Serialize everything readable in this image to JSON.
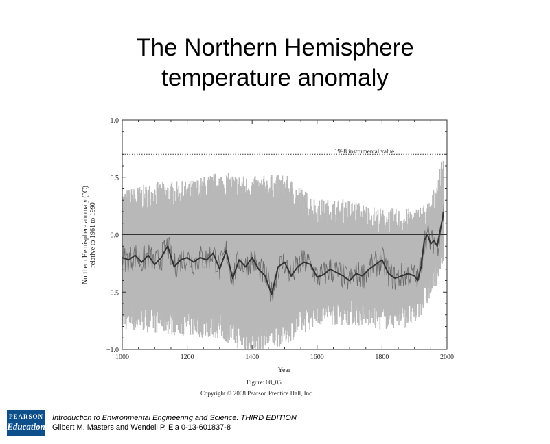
{
  "slide": {
    "title_line1": "The Northern Hemisphere",
    "title_line2": "temperature anomaly"
  },
  "footer": {
    "logo_top": "PEARSON",
    "logo_bottom": "Education",
    "line1": "Introduction to Environmental Engineering and Science: THIRD EDITION",
    "line2": "Gilbert M. Masters and Wendell P. Ela  0-13-601837-8"
  },
  "chart_data": {
    "type": "line",
    "title": "",
    "xlabel": "Year",
    "ylabel_line1": "Northern Hemisphere anomaly (°C)",
    "ylabel_line2": "relative to 1961 to 1990",
    "xlim": [
      1000,
      2000
    ],
    "ylim": [
      -1.0,
      1.0
    ],
    "x_ticks": [
      "1000",
      "1200",
      "1400",
      "1600",
      "1800",
      "2000"
    ],
    "y_ticks": [
      "1.0",
      "0.5",
      "0.0",
      "−0.5",
      "−1.0"
    ],
    "reference_lines": [
      {
        "label": "1998 instrumental value",
        "y": 0.7,
        "style": "dotted"
      },
      {
        "label": "",
        "y": 0.0,
        "style": "solid"
      }
    ],
    "caption_line1": "Figure: 08_05",
    "caption_line2": "Copyright © 2008 Pearson Prentice Hall, Inc.",
    "colors": {
      "uncertainty": "#b8b8b8",
      "annual": "#6a6a6a",
      "smoothed": "#333333"
    },
    "series": [
      {
        "name": "",
        "x": [
          1000,
          1020,
          1040,
          1060,
          1080,
          1100,
          1120,
          1140,
          1160,
          1180,
          1200,
          1220,
          1240,
          1260,
          1280,
          1300,
          1320,
          1340,
          1360,
          1380,
          1400,
          1420,
          1440,
          1460,
          1480,
          1500,
          1520,
          1540,
          1560,
          1580,
          1600,
          1620,
          1640,
          1660,
          1680,
          1700,
          1720,
          1740,
          1760,
          1780,
          1800,
          1820,
          1840,
          1860,
          1880,
          1900,
          1910,
          1920,
          1930,
          1940,
          1950,
          1960,
          1970,
          1980,
          1990
        ],
        "y": [
          -0.2,
          -0.22,
          -0.18,
          -0.24,
          -0.18,
          -0.26,
          -0.2,
          -0.1,
          -0.28,
          -0.22,
          -0.2,
          -0.24,
          -0.2,
          -0.22,
          -0.16,
          -0.3,
          -0.14,
          -0.38,
          -0.22,
          -0.28,
          -0.2,
          -0.3,
          -0.36,
          -0.52,
          -0.28,
          -0.24,
          -0.36,
          -0.28,
          -0.24,
          -0.26,
          -0.37,
          -0.35,
          -0.3,
          -0.33,
          -0.36,
          -0.4,
          -0.34,
          -0.36,
          -0.3,
          -0.26,
          -0.22,
          -0.34,
          -0.38,
          -0.36,
          -0.34,
          -0.36,
          -0.4,
          -0.28,
          -0.05,
          0.0,
          -0.08,
          -0.05,
          -0.1,
          0.05,
          0.2
        ]
      }
    ],
    "uncertainty_band": {
      "x": [
        1000,
        1100,
        1200,
        1300,
        1400,
        1500,
        1600,
        1700,
        1800,
        1900,
        1950,
        1990
      ],
      "upper": [
        0.28,
        0.35,
        0.36,
        0.44,
        0.4,
        0.42,
        0.2,
        0.2,
        0.12,
        0.12,
        0.2,
        0.6
      ],
      "lower": [
        -0.72,
        -0.75,
        -0.78,
        -0.8,
        -0.95,
        -0.85,
        -0.68,
        -0.68,
        -0.72,
        -0.7,
        -0.45,
        -0.2
      ]
    }
  }
}
